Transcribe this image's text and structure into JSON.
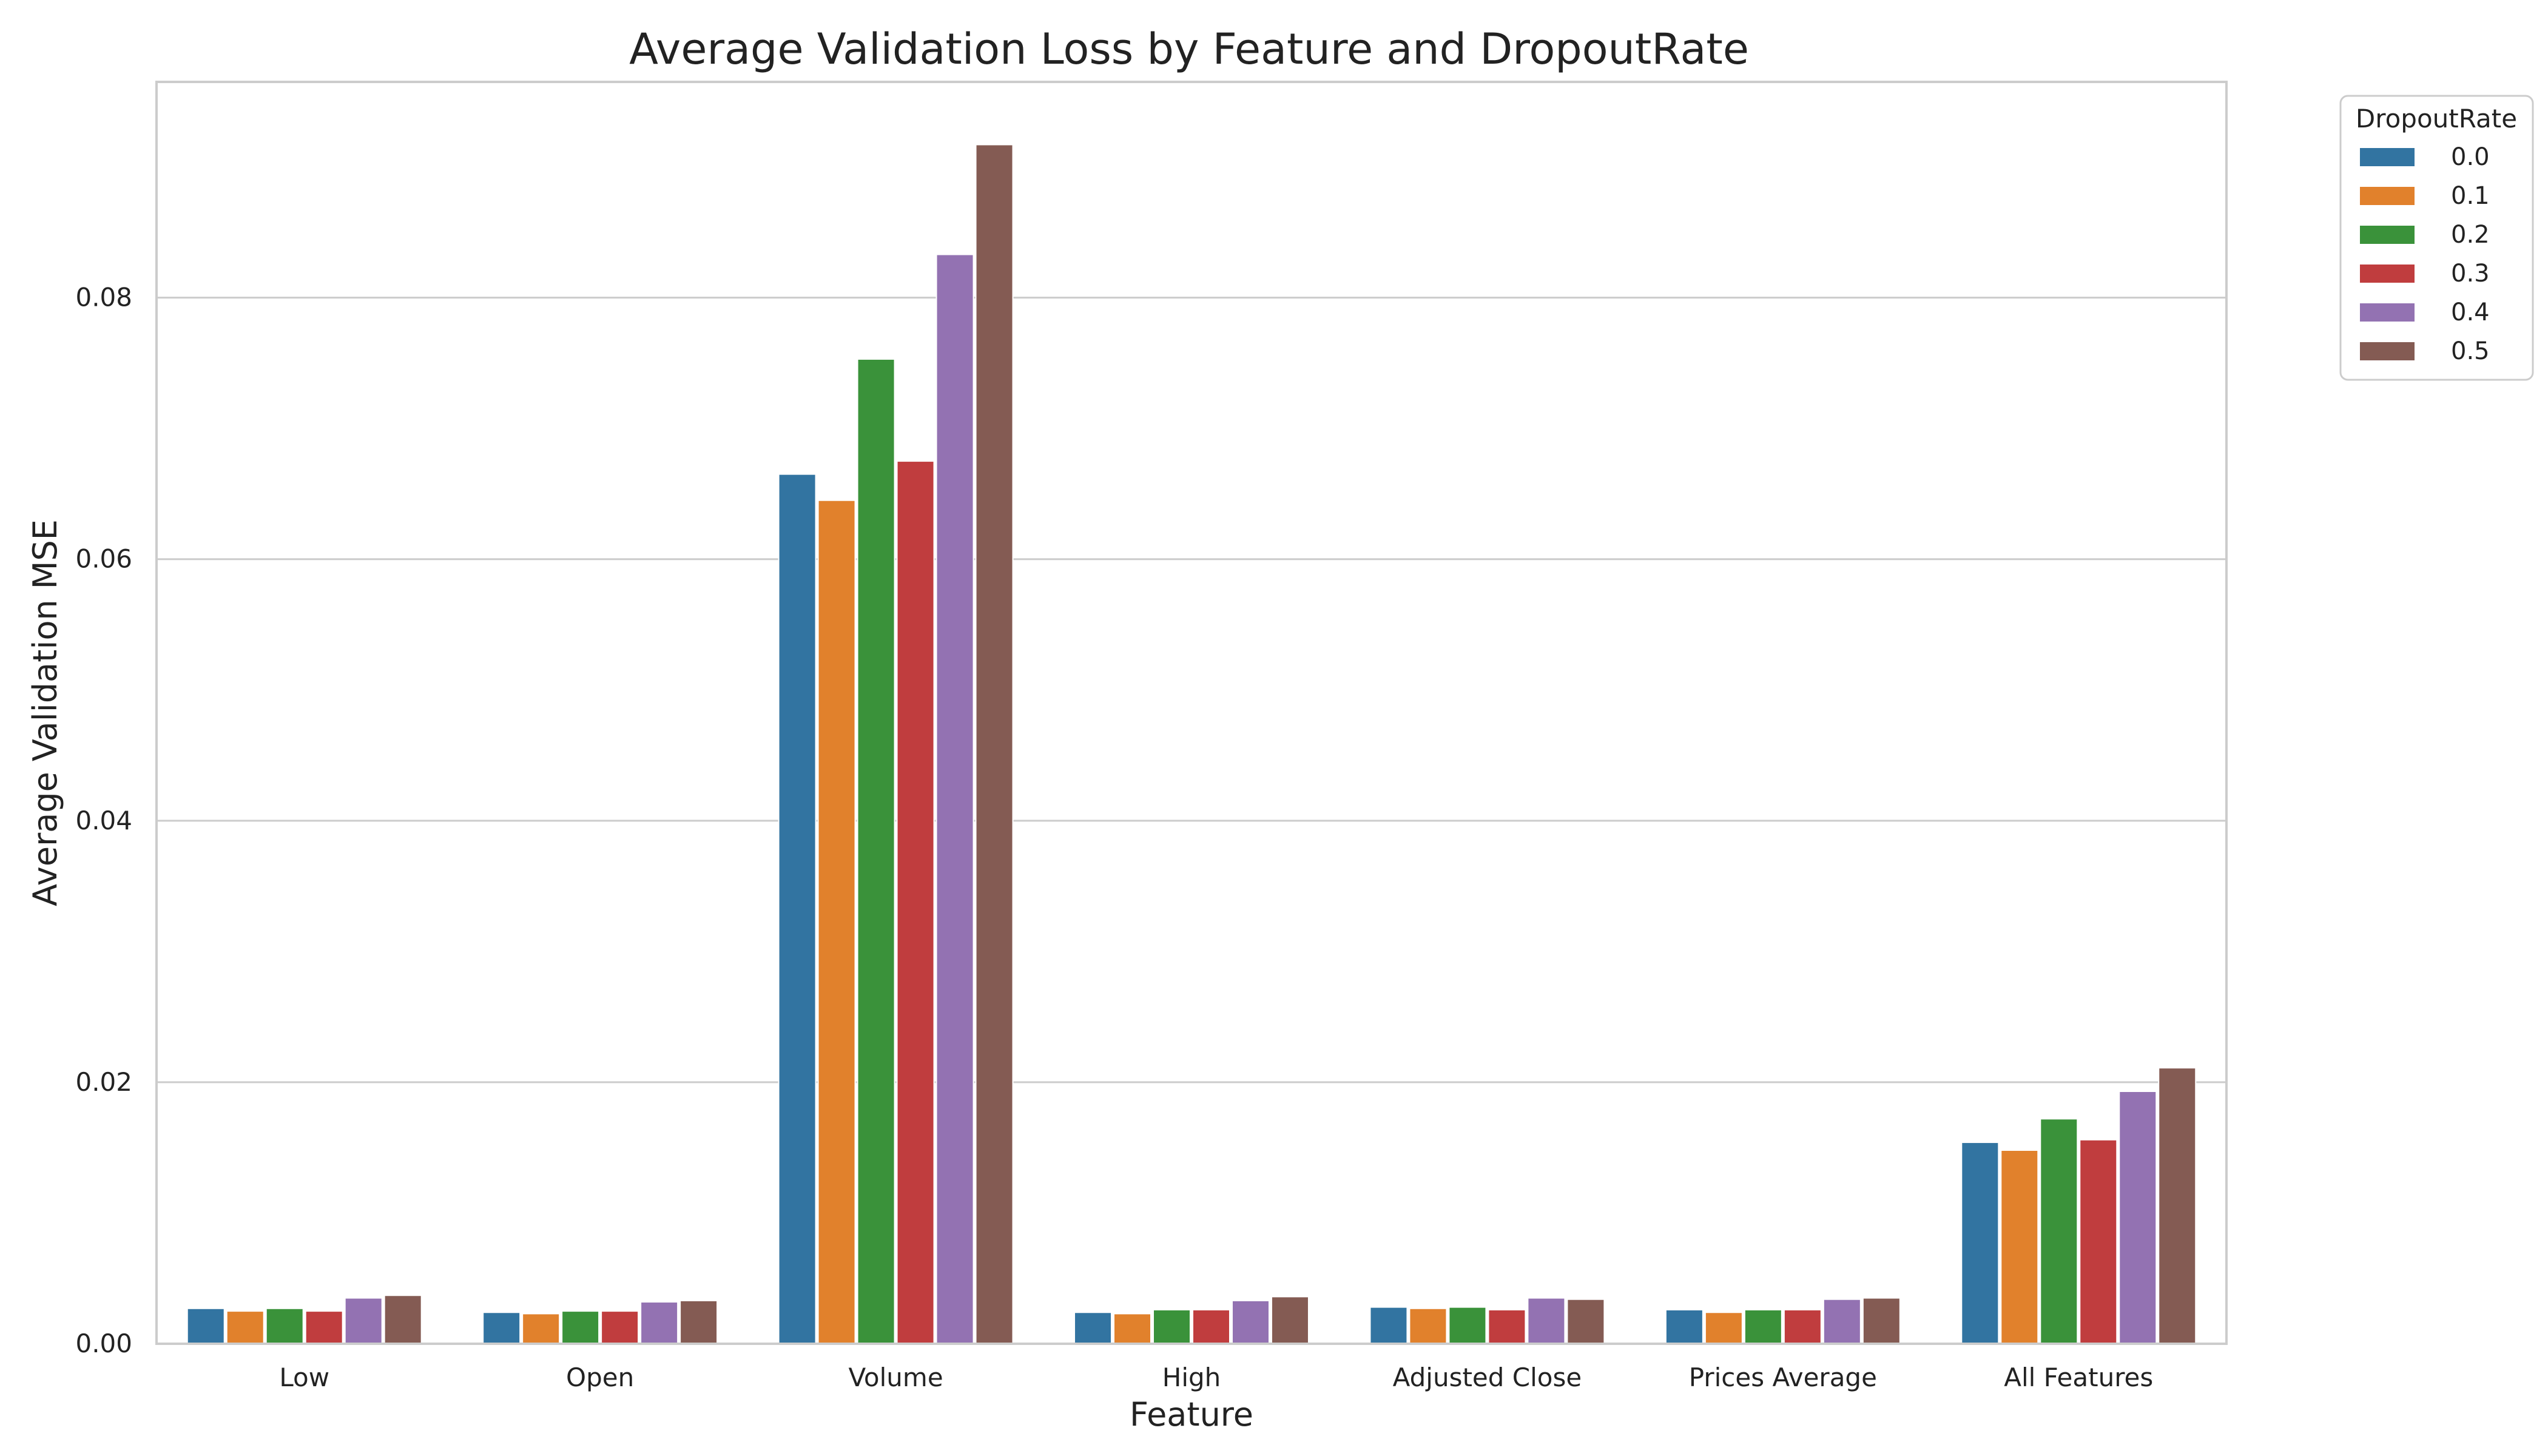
{
  "chart_data": {
    "type": "bar",
    "title": "Average Validation Loss by Feature and DropoutRate",
    "xlabel": "Feature",
    "ylabel": "Average Validation MSE",
    "categories": [
      "Low",
      "Open",
      "Volume",
      "High",
      "Adjusted Close",
      "Prices Average",
      "All Features"
    ],
    "ylim": [
      0,
      0.0965
    ],
    "yticks": [
      0.0,
      0.02,
      0.04,
      0.06,
      0.08
    ],
    "ytick_labels": [
      "0.00",
      "0.02",
      "0.04",
      "0.06",
      "0.08"
    ],
    "grid": "horizontal",
    "legend": {
      "title": "DropoutRate",
      "placement": "outside top-right"
    },
    "series": [
      {
        "name": "0.0",
        "color": "#3274a1",
        "values": [
          0.0027,
          0.0024,
          0.0665,
          0.0024,
          0.0028,
          0.0026,
          0.0154
        ]
      },
      {
        "name": "0.1",
        "color": "#e1812c",
        "values": [
          0.0025,
          0.0023,
          0.0645,
          0.0023,
          0.0027,
          0.0024,
          0.0148
        ]
      },
      {
        "name": "0.2",
        "color": "#3a923a",
        "values": [
          0.0027,
          0.0025,
          0.0753,
          0.0026,
          0.0028,
          0.0026,
          0.0172
        ]
      },
      {
        "name": "0.3",
        "color": "#c03d3e",
        "values": [
          0.0025,
          0.0025,
          0.0675,
          0.0026,
          0.0026,
          0.0026,
          0.0156
        ]
      },
      {
        "name": "0.4",
        "color": "#9372b2",
        "values": [
          0.0035,
          0.0032,
          0.0833,
          0.0033,
          0.0035,
          0.0034,
          0.0193
        ]
      },
      {
        "name": "0.5",
        "color": "#845b53",
        "values": [
          0.0037,
          0.0033,
          0.0917,
          0.0036,
          0.0034,
          0.0035,
          0.0211
        ]
      }
    ]
  }
}
